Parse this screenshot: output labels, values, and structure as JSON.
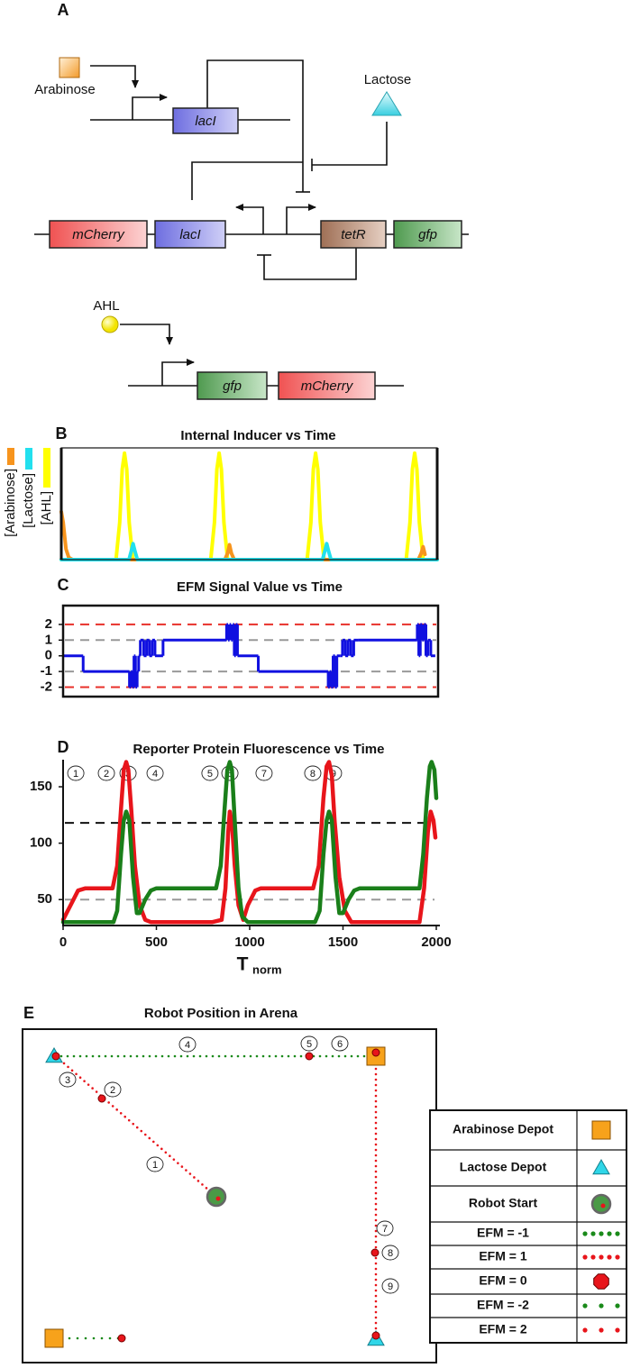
{
  "panel_a": {
    "label": "A",
    "inputs": [
      "Arabinose",
      "Lactose",
      "AHL"
    ],
    "genes": [
      "lacI",
      "mCherry",
      "lacI",
      "tetR",
      "gfp",
      "gfp",
      "mCherry"
    ]
  },
  "chart_data": [
    {
      "type": "line",
      "panel": "B",
      "title": "Internal Inducer vs Time",
      "xlim": [
        0,
        2000
      ],
      "ylim": [
        0,
        1.05
      ],
      "series": [
        {
          "name": "[AHL]",
          "color": "#ffff00",
          "x": [
            0,
            291,
            311,
            324,
            336,
            348,
            361,
            381,
            795,
            815,
            828,
            840,
            852,
            865,
            885,
            1308,
            1328,
            1341,
            1353,
            1365,
            1378,
            1398,
            1835,
            1855,
            1868,
            1880,
            1892,
            1905,
            1925,
            2000
          ],
          "values": [
            0,
            0,
            0.35,
            0.85,
            1,
            0.85,
            0.35,
            0,
            0,
            0.35,
            0.85,
            1,
            0.85,
            0.35,
            0,
            0,
            0.35,
            0.85,
            1,
            0.85,
            0.35,
            0,
            0,
            0.35,
            0.85,
            1,
            0.85,
            0.35,
            0,
            0
          ]
        },
        {
          "name": "[Arabinose]",
          "color": "#f7941d",
          "x": [
            0,
            10,
            25,
            40,
            60,
            870,
            885,
            895,
            905,
            920,
            1900,
            1915,
            1925,
            1935
          ],
          "values": [
            0.45,
            0.35,
            0.1,
            0.02,
            0,
            0,
            0.06,
            0.14,
            0.06,
            0,
            0,
            0.06,
            0.12,
            0.05
          ]
        },
        {
          "name": "[Lactose]",
          "color": "#22e0ee",
          "x": [
            0,
            360,
            372,
            382,
            392,
            405,
            1390,
            1402,
            1412,
            1422,
            1435,
            2000
          ],
          "values": [
            0,
            0,
            0.08,
            0.15,
            0.08,
            0,
            0,
            0.08,
            0.15,
            0.08,
            0,
            0
          ]
        }
      ]
    },
    {
      "type": "step",
      "panel": "C",
      "title": "EFM Signal Value vs Time",
      "xlim": [
        0,
        2000
      ],
      "ylim": [
        -2.6,
        3.2
      ],
      "yticks": [
        -2,
        -1,
        0,
        1,
        2
      ],
      "reference_lines": [
        {
          "value": 2,
          "color": "#e8302a"
        },
        {
          "value": 1,
          "color": "#999999"
        },
        {
          "value": -1,
          "color": "#999999"
        },
        {
          "value": -2,
          "color": "#e8302a"
        }
      ],
      "series": [
        {
          "color": "#1010e0",
          "x": [
            0,
            107,
            354,
            362,
            370,
            378,
            386,
            395,
            403,
            412,
            430,
            445,
            460,
            475,
            490,
            533,
            872,
            880,
            888,
            896,
            905,
            913,
            921,
            930,
            1041,
            1414,
            1422,
            1430,
            1440,
            1450,
            1460,
            1477,
            1490,
            1505,
            1520,
            1535,
            1550,
            1574,
            1889,
            1897,
            1905,
            1915,
            1925,
            1935,
            1945,
            1961,
            1985
          ],
          "values": [
            0,
            -1,
            -2,
            -1,
            -2,
            0,
            -2,
            -1,
            0,
            1,
            0,
            1,
            0,
            1,
            0,
            1,
            2,
            1,
            2,
            1,
            2,
            0,
            2,
            0,
            -1,
            -2,
            -1,
            -2,
            0,
            -2,
            0,
            0,
            1,
            0,
            1,
            0,
            1,
            1,
            2,
            0,
            2,
            1,
            2,
            0,
            1,
            0,
            0
          ]
        }
      ]
    },
    {
      "type": "line",
      "panel": "D",
      "title": "Reporter Protein Fluorescence vs Time",
      "xlabel": "T",
      "xlabel_sub": "norm",
      "xlim": [
        0,
        2000
      ],
      "ylim": [
        27,
        174
      ],
      "xticks": [
        0,
        500,
        1000,
        1500,
        2000
      ],
      "yticks": [
        50,
        100,
        150
      ],
      "reference_lines": [
        {
          "value": 118,
          "color": "#111111"
        },
        {
          "value": 50,
          "color": "#999999"
        }
      ],
      "annotations": [
        {
          "x": 68,
          "label": "1"
        },
        {
          "x": 232,
          "label": "2"
        },
        {
          "x": 348,
          "label": "3"
        },
        {
          "x": 493,
          "label": "4"
        },
        {
          "x": 787,
          "label": "5"
        },
        {
          "x": 894,
          "label": "6"
        },
        {
          "x": 1077,
          "label": "7"
        },
        {
          "x": 1338,
          "label": "8"
        },
        {
          "x": 1449,
          "label": "9"
        }
      ],
      "series": [
        {
          "color": "#e8151b",
          "x": [
            0,
            40,
            80,
            120,
            265,
            290,
            310,
            325,
            338,
            350,
            365,
            385,
            410,
            440,
            470,
            800,
            850,
            870,
            885,
            893,
            905,
            920,
            940,
            965,
            990,
            1030,
            1060,
            1340,
            1370,
            1395,
            1412,
            1425,
            1440,
            1455,
            1480,
            1510,
            1545,
            1910,
            1935,
            1955,
            1970,
            1985,
            1995
          ],
          "values": [
            32,
            45,
            58,
            60,
            60,
            80,
            130,
            165,
            172,
            165,
            130,
            80,
            45,
            32,
            30,
            30,
            32,
            60,
            110,
            128,
            118,
            80,
            45,
            32,
            45,
            58,
            60,
            60,
            80,
            140,
            168,
            172,
            160,
            120,
            70,
            40,
            30,
            30,
            60,
            110,
            128,
            120,
            105
          ]
        },
        {
          "color": "#1a7f1a",
          "x": [
            0,
            270,
            290,
            310,
            325,
            338,
            355,
            375,
            395,
            410,
            440,
            470,
            500,
            820,
            845,
            865,
            880,
            893,
            905,
            920,
            940,
            960,
            990,
            1350,
            1375,
            1395,
            1412,
            1425,
            1440,
            1460,
            1480,
            1500,
            1530,
            1560,
            1590,
            1910,
            1930,
            1950,
            1965,
            1975,
            1990,
            2000
          ],
          "values": [
            30,
            30,
            40,
            90,
            120,
            128,
            120,
            70,
            38,
            38,
            50,
            58,
            60,
            60,
            80,
            130,
            165,
            172,
            165,
            120,
            60,
            35,
            30,
            30,
            40,
            90,
            120,
            128,
            120,
            70,
            38,
            38,
            50,
            58,
            60,
            60,
            90,
            140,
            168,
            172,
            165,
            140
          ]
        }
      ]
    }
  ],
  "panel_e": {
    "label": "E",
    "title": "Robot Position in Arena",
    "path_labels": [
      "1",
      "2",
      "3",
      "4",
      "5",
      "6",
      "7",
      "8",
      "9"
    ],
    "legend": [
      "Arabinose Depot",
      "Lactose Depot",
      "Robot Start",
      "EFM = -1",
      "EFM =  1",
      "EFM =  0",
      "EFM = -2",
      "EFM =  2"
    ]
  }
}
